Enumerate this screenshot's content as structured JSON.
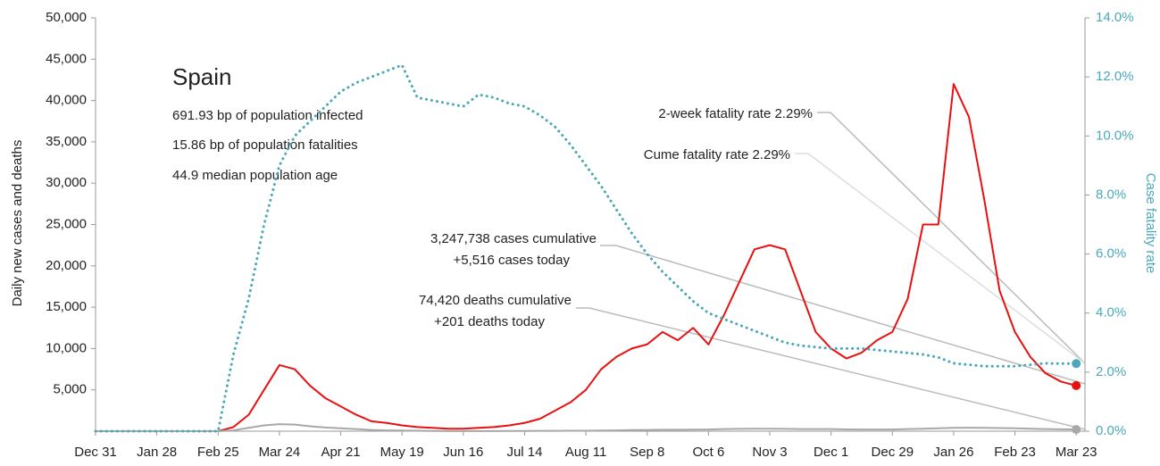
{
  "chart_data": {
    "type": "line",
    "title": "Spain",
    "subtitle_lines": [
      "691.93 bp of population infected",
      "15.86 bp of population fatalities",
      "44.9 median population age"
    ],
    "annotations": [
      "2-week fatality rate 2.29%",
      "Cume fatality rate 2.29%",
      "3,247,738 cases cumulative",
      "+5,516 cases today",
      "74,420 deaths cumulative",
      "+201 deaths today"
    ],
    "y_label": "Daily new cases and deaths",
    "y2_label": "Case fatality rate",
    "xlim": [
      0,
      452
    ],
    "xticks": [
      {
        "value": 0,
        "label": "Dec 31"
      },
      {
        "value": 28,
        "label": "Jan 28"
      },
      {
        "value": 56,
        "label": "Feb 25"
      },
      {
        "value": 84,
        "label": "Mar 24"
      },
      {
        "value": 112,
        "label": "Apr 21"
      },
      {
        "value": 140,
        "label": "May 19"
      },
      {
        "value": 168,
        "label": "Jun 16"
      },
      {
        "value": 196,
        "label": "Jul 14"
      },
      {
        "value": 224,
        "label": "Aug 11"
      },
      {
        "value": 252,
        "label": "Sep 8"
      },
      {
        "value": 280,
        "label": "Oct 6"
      },
      {
        "value": 308,
        "label": "Nov 3"
      },
      {
        "value": 336,
        "label": "Dec 1"
      },
      {
        "value": 364,
        "label": "Dec 29"
      },
      {
        "value": 392,
        "label": "Jan 26"
      },
      {
        "value": 420,
        "label": "Feb 23"
      },
      {
        "value": 448,
        "label": "Mar 23"
      }
    ],
    "ylim": [
      0,
      50000
    ],
    "yticks": [
      {
        "value": 5000,
        "label": "5,000"
      },
      {
        "value": 10000,
        "label": "10,000"
      },
      {
        "value": 15000,
        "label": "15,000"
      },
      {
        "value": 20000,
        "label": "20,000"
      },
      {
        "value": 25000,
        "label": "25,000"
      },
      {
        "value": 30000,
        "label": "30,000"
      },
      {
        "value": 35000,
        "label": "35,000"
      },
      {
        "value": 40000,
        "label": "40,000"
      },
      {
        "value": 45000,
        "label": "45,000"
      },
      {
        "value": 50000,
        "label": "50,000"
      }
    ],
    "y2lim": [
      0,
      14
    ],
    "y2ticks": [
      {
        "value": 0,
        "label": "0.0%"
      },
      {
        "value": 2,
        "label": "2.0%"
      },
      {
        "value": 4,
        "label": "4.0%"
      },
      {
        "value": 6,
        "label": "6.0%"
      },
      {
        "value": 8,
        "label": "8.0%"
      },
      {
        "value": 10,
        "label": "10.0%"
      },
      {
        "value": 12,
        "label": "12.0%"
      },
      {
        "value": 14,
        "label": "14.0%"
      }
    ],
    "x": [
      0,
      7,
      14,
      21,
      28,
      35,
      42,
      49,
      56,
      63,
      70,
      77,
      84,
      91,
      98,
      105,
      112,
      119,
      126,
      133,
      140,
      147,
      154,
      161,
      168,
      175,
      182,
      189,
      196,
      203,
      210,
      217,
      224,
      231,
      238,
      245,
      252,
      259,
      266,
      273,
      280,
      287,
      294,
      301,
      308,
      315,
      322,
      329,
      336,
      343,
      350,
      357,
      364,
      371,
      378,
      385,
      392,
      399,
      406,
      413,
      420,
      427,
      434,
      441,
      448
    ],
    "series": [
      {
        "color": "#e81010",
        "line_style": "solid",
        "axis": "y",
        "values": [
          0,
          0,
          0,
          0,
          0,
          0,
          0,
          0,
          0,
          500,
          2000,
          5000,
          8000,
          7500,
          5500,
          4000,
          3000,
          2000,
          1200,
          1000,
          700,
          500,
          400,
          300,
          300,
          400,
          500,
          700,
          1000,
          1500,
          2500,
          3500,
          5000,
          7500,
          9000,
          10000,
          10500,
          12000,
          11000,
          12500,
          10500,
          14000,
          18000,
          22000,
          22500,
          22000,
          17000,
          12000,
          10000,
          8800,
          9500,
          11000,
          12000,
          16000,
          25000,
          25000,
          42000,
          38000,
          28000,
          17000,
          12000,
          9000,
          7000,
          6000,
          5516
        ]
      },
      {
        "color": "#a8a8a8",
        "line_style": "solid",
        "axis": "y",
        "values": [
          0,
          0,
          0,
          0,
          0,
          0,
          0,
          0,
          0,
          100,
          400,
          700,
          850,
          800,
          600,
          450,
          350,
          250,
          150,
          100,
          80,
          50,
          30,
          20,
          20,
          20,
          20,
          30,
          30,
          40,
          40,
          50,
          50,
          80,
          100,
          130,
          150,
          170,
          180,
          190,
          200,
          250,
          280,
          300,
          300,
          280,
          260,
          250,
          250,
          220,
          200,
          200,
          200,
          250,
          300,
          350,
          400,
          420,
          400,
          380,
          350,
          300,
          260,
          230,
          201
        ]
      },
      {
        "color": "#4aa8b8",
        "line_style": "dotted",
        "axis": "y2",
        "values": [
          0,
          0,
          0,
          0,
          0,
          0,
          0,
          0,
          0,
          2.6,
          4.5,
          7,
          9,
          10,
          10.5,
          11,
          11.5,
          11.8,
          12,
          12.2,
          12.4,
          11.3,
          11.2,
          11.1,
          11,
          11.4,
          11.3,
          11.1,
          11,
          10.7,
          10.3,
          9.7,
          9,
          8.3,
          7.5,
          6.7,
          6,
          5.4,
          4.9,
          4.4,
          4,
          3.8,
          3.6,
          3.4,
          3.2,
          3,
          2.9,
          2.85,
          2.8,
          2.8,
          2.8,
          2.75,
          2.7,
          2.65,
          2.6,
          2.5,
          2.3,
          2.25,
          2.2,
          2.2,
          2.2,
          2.25,
          2.3,
          2.29,
          2.29
        ]
      }
    ]
  }
}
